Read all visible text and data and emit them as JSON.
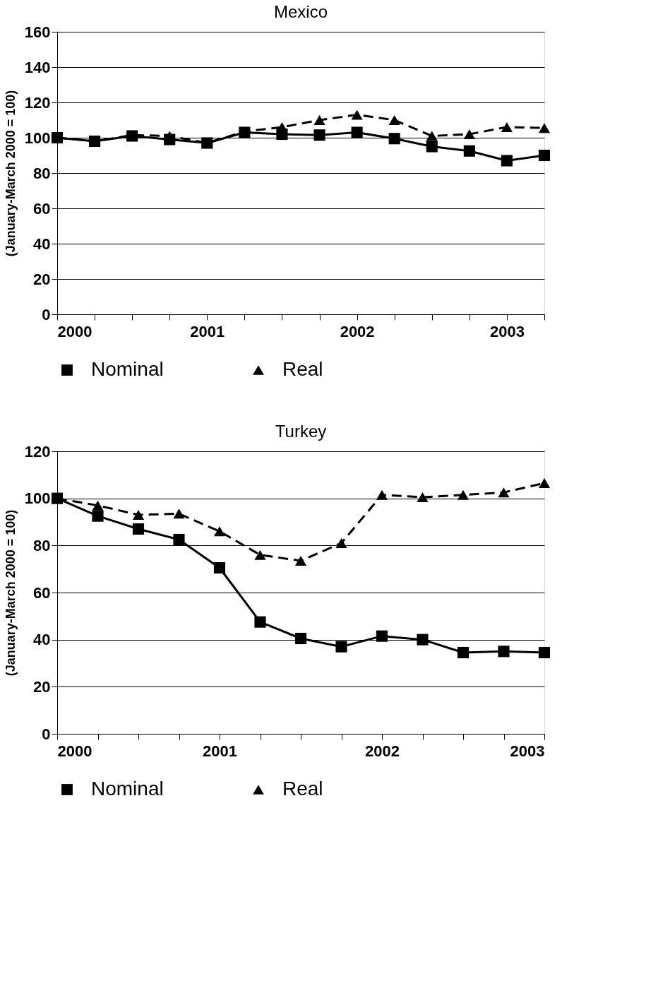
{
  "chart_data": [
    {
      "type": "line",
      "title": "Mexico",
      "ylabel": "(January-March 2000 = 100)",
      "x": [
        2000,
        2000.25,
        2000.5,
        2000.75,
        2001,
        2001.25,
        2001.5,
        2001.75,
        2002,
        2002.25,
        2002.5,
        2002.75,
        2003,
        2003.25
      ],
      "xlim": [
        2000,
        2003.25
      ],
      "xticks": [
        2000,
        {
          "value": 2000.25,
          "label": null
        },
        {
          "value": 2000.5,
          "label": null
        },
        {
          "value": 2000.75,
          "label": null
        },
        2001,
        {
          "value": 2001.25,
          "label": null
        },
        {
          "value": 2001.5,
          "label": null
        },
        {
          "value": 2001.75,
          "label": null
        },
        2002,
        {
          "value": 2002.25,
          "label": null
        },
        {
          "value": 2002.5,
          "label": null
        },
        {
          "value": 2002.75,
          "label": null
        },
        2003,
        {
          "value": 2003.25,
          "label": null
        }
      ],
      "ylim": [
        0,
        160
      ],
      "yticks": [
        0,
        20,
        40,
        60,
        80,
        100,
        120,
        140,
        160
      ],
      "grid": "y",
      "legend": "bottom",
      "series": [
        {
          "name": "Nominal",
          "color": "#000000",
          "marker": "square",
          "line_style": "solid",
          "values": [
            100,
            98,
            101,
            99,
            97,
            103,
            102,
            101.5,
            103,
            99.5,
            95,
            92.5,
            87,
            90
          ]
        },
        {
          "name": "Real",
          "color": "#000000",
          "marker": "triangle",
          "line_style": "dashed",
          "values": [
            100,
            98,
            101.5,
            101,
            97,
            103.5,
            106,
            110,
            113,
            110,
            101,
            102,
            106,
            105.5
          ]
        }
      ]
    },
    {
      "type": "line",
      "title": "Turkey",
      "ylabel": "(January-March 2000 = 100)",
      "x": [
        2000,
        2000.25,
        2000.5,
        2000.75,
        2001,
        2001.25,
        2001.5,
        2001.75,
        2002,
        2002.25,
        2002.5,
        2002.75,
        2003
      ],
      "xlim": [
        2000,
        2003
      ],
      "xticks": [
        2000,
        {
          "value": 2000.25,
          "label": null
        },
        {
          "value": 2000.5,
          "label": null
        },
        {
          "value": 2000.75,
          "label": null
        },
        2001,
        {
          "value": 2001.25,
          "label": null
        },
        {
          "value": 2001.5,
          "label": null
        },
        {
          "value": 2001.75,
          "label": null
        },
        2002,
        {
          "value": 2002.25,
          "label": null
        },
        {
          "value": 2002.5,
          "label": null
        },
        {
          "value": 2002.75,
          "label": null
        },
        2003
      ],
      "ylim": [
        0,
        120
      ],
      "yticks": [
        0,
        20,
        40,
        60,
        80,
        100,
        120
      ],
      "grid": "y",
      "legend": "bottom",
      "series": [
        {
          "name": "Nominal",
          "color": "#000000",
          "marker": "square",
          "line_style": "solid",
          "values": [
            100,
            92.5,
            87,
            82.5,
            70.5,
            47.5,
            40.5,
            37,
            41.5,
            40,
            34.5,
            35,
            34.5
          ]
        },
        {
          "name": "Real",
          "color": "#000000",
          "marker": "triangle",
          "line_style": "dashed",
          "values": [
            100,
            97,
            93,
            93.5,
            86,
            76,
            73.5,
            81,
            101.5,
            100.5,
            101.5,
            102.5,
            106.5
          ]
        }
      ]
    }
  ]
}
